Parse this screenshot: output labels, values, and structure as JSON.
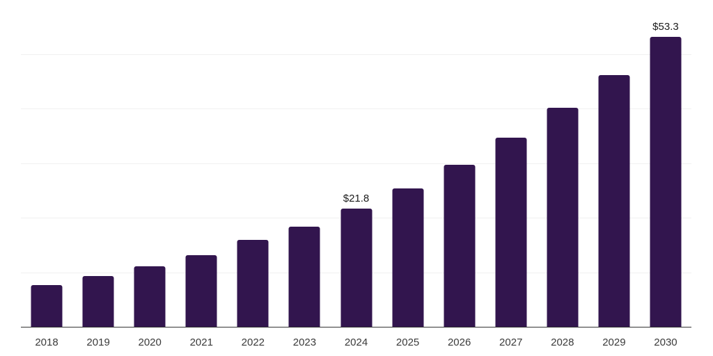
{
  "chart_data": {
    "type": "bar",
    "title": "",
    "xlabel": "",
    "ylabel": "",
    "categories": [
      "2018",
      "2019",
      "2020",
      "2021",
      "2022",
      "2023",
      "2024",
      "2025",
      "2026",
      "2027",
      "2028",
      "2029",
      "2030"
    ],
    "values": [
      7.8,
      9.4,
      11.2,
      13.2,
      16.0,
      18.5,
      21.8,
      25.5,
      29.8,
      34.8,
      40.3,
      46.3,
      53.3
    ],
    "bar_labels": [
      "",
      "",
      "",
      "",
      "",
      "",
      "$21.8",
      "",
      "",
      "",
      "",
      "",
      "$53.3"
    ],
    "ylim": [
      0,
      60
    ],
    "gridline_values": [
      10,
      20,
      30,
      40,
      50,
      60
    ],
    "grid": true,
    "legend": false,
    "y_axis_labels_visible": false,
    "colors": {
      "bar": "#32154e",
      "gridline": "#f0f0f0",
      "axis_line": "#333333",
      "value_label": "#1a1a1a",
      "tick_label": "#3a3a3a",
      "background": "#ffffff"
    }
  }
}
